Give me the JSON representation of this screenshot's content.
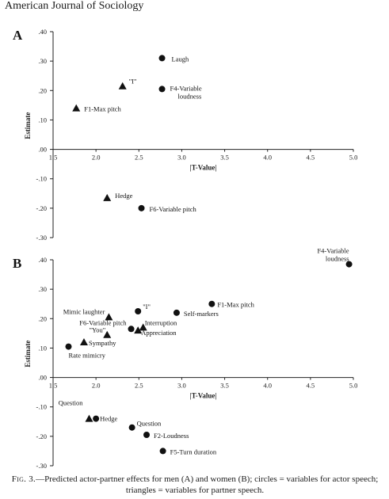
{
  "header": {
    "journal": "American Journal of Sociology"
  },
  "caption": {
    "lead": "Fig. 3.",
    "text": "—Predicted actor-partner effects for men (A) and women (B); circles = variables for actor speech; triangles = variables for partner speech."
  },
  "chart_data": [
    {
      "panel_label": "A",
      "type": "scatter",
      "xlabel": "|T-Value|",
      "ylabel": "Estimate",
      "xlim": [
        1.5,
        5.0
      ],
      "ylim": [
        -0.3,
        0.4
      ],
      "x_ticks": [
        "1.5",
        "2.0",
        "2.5",
        "3.0",
        "3.5",
        "4.0",
        "4.5",
        "5.0"
      ],
      "y_ticks": [
        ".40",
        ".30",
        ".20",
        ".10",
        ".00",
        "-.10",
        "-.20",
        "-.30"
      ],
      "points": [
        {
          "label": "Laugh",
          "x": 2.77,
          "y": 0.31,
          "marker": "circle"
        },
        {
          "label": "\"I\"",
          "x": 2.31,
          "y": 0.215,
          "marker": "triangle"
        },
        {
          "label": "F4-Variable loudness",
          "x": 2.77,
          "y": 0.205,
          "marker": "circle"
        },
        {
          "label": "F1-Max pitch",
          "x": 1.77,
          "y": 0.14,
          "marker": "triangle"
        },
        {
          "label": "Hedge",
          "x": 2.13,
          "y": -0.165,
          "marker": "triangle"
        },
        {
          "label": "F6-Variable pitch",
          "x": 2.53,
          "y": -0.2,
          "marker": "circle"
        }
      ]
    },
    {
      "panel_label": "B",
      "type": "scatter",
      "xlabel": "|T-Value|",
      "ylabel": "Estimate",
      "xlim": [
        1.5,
        5.0
      ],
      "ylim": [
        -0.3,
        0.4
      ],
      "x_ticks": [
        "1.5",
        "2.0",
        "2.5",
        "3.0",
        "3.5",
        "4.0",
        "4.5",
        "5.0"
      ],
      "y_ticks": [
        ".40",
        ".30",
        ".20",
        ".10",
        ".00",
        "-.10",
        "-.20",
        "-.30"
      ],
      "points": [
        {
          "label": "F4-Variable loudness",
          "x": 4.95,
          "y": 0.385,
          "marker": "circle"
        },
        {
          "label": "F1-Max pitch",
          "x": 3.35,
          "y": 0.25,
          "marker": "circle"
        },
        {
          "label": "\"I\"",
          "x": 2.49,
          "y": 0.225,
          "marker": "circle"
        },
        {
          "label": "Self-markers",
          "x": 2.94,
          "y": 0.22,
          "marker": "circle"
        },
        {
          "label": "Mimic laughter",
          "x": 2.15,
          "y": 0.205,
          "marker": "triangle"
        },
        {
          "label": "F6-Variable pitch",
          "x": 2.41,
          "y": 0.165,
          "marker": "circle"
        },
        {
          "label": "Interruption",
          "x": 2.55,
          "y": 0.17,
          "marker": "triangle"
        },
        {
          "label": "Appreciation",
          "x": 2.49,
          "y": 0.16,
          "marker": "triangle"
        },
        {
          "label": "\"You\"",
          "x": 2.13,
          "y": 0.145,
          "marker": "triangle"
        },
        {
          "label": "Sympathy",
          "x": 1.86,
          "y": 0.12,
          "marker": "triangle"
        },
        {
          "label": "Rate mimicry",
          "x": 1.68,
          "y": 0.105,
          "marker": "circle"
        },
        {
          "label": "Question",
          "x": 1.92,
          "y": -0.14,
          "marker": "triangle"
        },
        {
          "label": "Hedge",
          "x": 2.0,
          "y": -0.14,
          "marker": "circle"
        },
        {
          "label": "Question",
          "x": 2.42,
          "y": -0.17,
          "marker": "circle"
        },
        {
          "label": "F2-Loudness",
          "x": 2.59,
          "y": -0.195,
          "marker": "circle"
        },
        {
          "label": "F5-Turn duration",
          "x": 2.78,
          "y": -0.25,
          "marker": "circle"
        }
      ]
    }
  ]
}
